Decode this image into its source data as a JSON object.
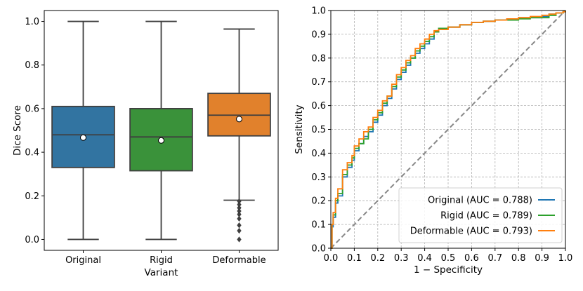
{
  "chart_data": [
    {
      "type": "box",
      "title": "",
      "xlabel": "Variant",
      "ylabel": "Dice Score",
      "ylim": [
        -0.05,
        1.05
      ],
      "yticks": [
        "0.0",
        "0.2",
        "0.4",
        "0.6",
        "0.8",
        "1.0"
      ],
      "grid": false,
      "categories": [
        "Original",
        "Rigid",
        "Deformable"
      ],
      "boxes": [
        {
          "name": "Original",
          "color": "#3274a1",
          "whisker_low": 0.0,
          "q1": 0.33,
          "median": 0.48,
          "q3": 0.61,
          "whisker_high": 1.0,
          "mean": 0.467,
          "outliers": []
        },
        {
          "name": "Rigid",
          "color": "#3a923a",
          "whisker_low": 0.0,
          "q1": 0.315,
          "median": 0.47,
          "q3": 0.6,
          "whisker_high": 1.0,
          "mean": 0.454,
          "outliers": []
        },
        {
          "name": "Deformable",
          "color": "#e1812c",
          "whisker_low": 0.18,
          "q1": 0.475,
          "median": 0.57,
          "q3": 0.67,
          "whisker_high": 0.965,
          "mean": 0.552,
          "outliers": [
            0.175,
            0.16,
            0.145,
            0.13,
            0.115,
            0.095,
            0.065,
            0.04,
            0.0
          ]
        }
      ]
    },
    {
      "type": "line",
      "title": "",
      "xlabel": "1 − Specificity",
      "ylabel": "Sensitivity",
      "xlim": [
        0.0,
        1.0
      ],
      "ylim": [
        0.0,
        1.0
      ],
      "xticks": [
        "0.0",
        "0.1",
        "0.2",
        "0.3",
        "0.4",
        "0.5",
        "0.6",
        "0.7",
        "0.8",
        "0.9",
        "1.0"
      ],
      "yticks": [
        "0.0",
        "0.1",
        "0.2",
        "0.3",
        "0.4",
        "0.5",
        "0.6",
        "0.7",
        "0.8",
        "0.9",
        "1.0"
      ],
      "grid": true,
      "legend_position": "lower-right",
      "diagonal": {
        "x": [
          0,
          1
        ],
        "y": [
          0,
          1
        ],
        "color": "#888888",
        "style": "dashed"
      },
      "series": [
        {
          "name": "Original",
          "auc": "0.788",
          "legend": "Original (AUC = 0.788)",
          "color": "#1f77b4",
          "x": [
            0,
            0.005,
            0.01,
            0.02,
            0.03,
            0.05,
            0.07,
            0.09,
            0.1,
            0.12,
            0.14,
            0.16,
            0.18,
            0.2,
            0.22,
            0.24,
            0.26,
            0.28,
            0.3,
            0.32,
            0.34,
            0.36,
            0.38,
            0.4,
            0.42,
            0.44,
            0.46,
            0.5,
            0.55,
            0.6,
            0.65,
            0.7,
            0.75,
            0.8,
            0.85,
            0.9,
            0.93,
            0.96,
            0.99,
            1.0
          ],
          "y": [
            0,
            0.09,
            0.13,
            0.19,
            0.22,
            0.3,
            0.34,
            0.37,
            0.41,
            0.44,
            0.47,
            0.49,
            0.53,
            0.56,
            0.6,
            0.63,
            0.67,
            0.71,
            0.74,
            0.77,
            0.8,
            0.82,
            0.84,
            0.86,
            0.88,
            0.91,
            0.925,
            0.93,
            0.94,
            0.95,
            0.955,
            0.96,
            0.965,
            0.97,
            0.97,
            0.975,
            0.985,
            0.99,
            0.995,
            1.0
          ]
        },
        {
          "name": "Rigid",
          "auc": "0.789",
          "legend": "Rigid (AUC = 0.789)",
          "color": "#2ca02c",
          "x": [
            0,
            0.005,
            0.01,
            0.02,
            0.03,
            0.05,
            0.07,
            0.09,
            0.1,
            0.12,
            0.14,
            0.16,
            0.18,
            0.2,
            0.22,
            0.24,
            0.26,
            0.28,
            0.3,
            0.32,
            0.34,
            0.36,
            0.38,
            0.4,
            0.42,
            0.44,
            0.46,
            0.5,
            0.55,
            0.6,
            0.65,
            0.7,
            0.75,
            0.8,
            0.85,
            0.9,
            0.93,
            0.96,
            0.99,
            1.0
          ],
          "y": [
            0,
            0.1,
            0.14,
            0.2,
            0.23,
            0.31,
            0.35,
            0.38,
            0.42,
            0.44,
            0.46,
            0.5,
            0.54,
            0.57,
            0.61,
            0.64,
            0.68,
            0.72,
            0.75,
            0.78,
            0.8,
            0.83,
            0.85,
            0.87,
            0.89,
            0.91,
            0.925,
            0.93,
            0.94,
            0.95,
            0.955,
            0.96,
            0.96,
            0.965,
            0.97,
            0.97,
            0.98,
            0.99,
            0.995,
            1.0
          ]
        },
        {
          "name": "Deformable",
          "auc": "0.793",
          "legend": "Deformable (AUC = 0.793)",
          "color": "#ff7f0e",
          "x": [
            0,
            0.005,
            0.01,
            0.02,
            0.03,
            0.05,
            0.07,
            0.09,
            0.1,
            0.12,
            0.14,
            0.16,
            0.18,
            0.2,
            0.22,
            0.24,
            0.26,
            0.28,
            0.3,
            0.32,
            0.34,
            0.36,
            0.38,
            0.4,
            0.42,
            0.44,
            0.46,
            0.5,
            0.55,
            0.6,
            0.65,
            0.7,
            0.75,
            0.8,
            0.85,
            0.9,
            0.93,
            0.96,
            0.99,
            1.0
          ],
          "y": [
            0,
            0.1,
            0.15,
            0.21,
            0.25,
            0.33,
            0.36,
            0.39,
            0.43,
            0.46,
            0.49,
            0.51,
            0.55,
            0.58,
            0.62,
            0.64,
            0.69,
            0.73,
            0.76,
            0.79,
            0.81,
            0.84,
            0.86,
            0.88,
            0.9,
            0.915,
            0.92,
            0.93,
            0.94,
            0.95,
            0.955,
            0.96,
            0.965,
            0.97,
            0.975,
            0.98,
            0.985,
            0.99,
            0.995,
            1.0
          ]
        }
      ]
    }
  ]
}
